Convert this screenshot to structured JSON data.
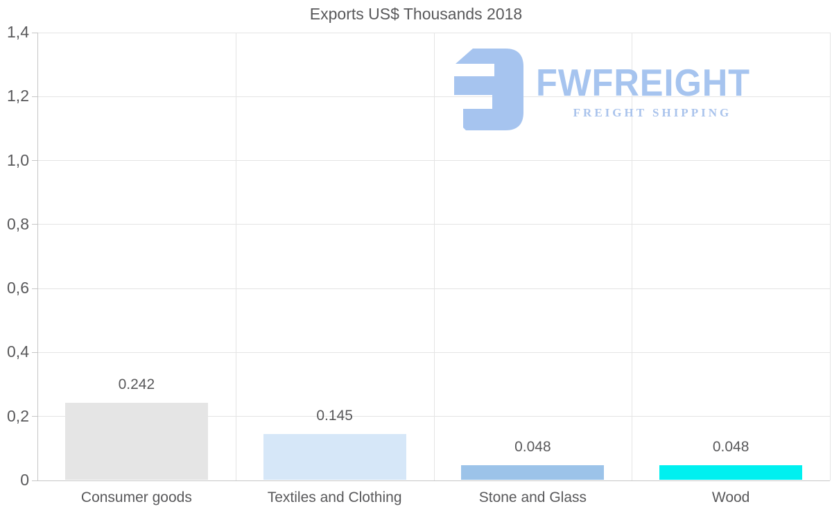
{
  "title": "Exports US$ Thousands 2018",
  "watermark": {
    "brand": "FWFREIGHT",
    "tagline": "FREIGHT SHIPPING",
    "brand_color": "#a6c4ef",
    "tagline_color": "#a9c3ec",
    "icon": "fwfreight-logo-icon"
  },
  "chart_data": {
    "type": "bar",
    "title": "Exports US$ Thousands 2018",
    "categories": [
      "Consumer goods",
      "Textiles and Clothing",
      "Stone and Glass",
      "Wood"
    ],
    "values": [
      0.242,
      0.145,
      0.048,
      0.048
    ],
    "value_labels": [
      "0.242",
      "0.145",
      "0.048",
      "0.048"
    ],
    "bar_colors": [
      "#e5e5e5",
      "#d6e7f8",
      "#9cc3e9",
      "#00f0f0"
    ],
    "xlabel": "",
    "ylabel": "",
    "ylim": [
      0,
      1.4
    ],
    "ytick_values": [
      0,
      0.2,
      0.4,
      0.6,
      0.8,
      1.0,
      1.2,
      1.4
    ],
    "ytick_labels": [
      "0",
      "0,2",
      "0,4",
      "0,6",
      "0,8",
      "1,0",
      "1,2",
      "1,4"
    ],
    "grid": true,
    "legend": "none",
    "text_color": "#58585a",
    "grid_color": "#e4e4e4",
    "axis_color": "#c6c6c6"
  }
}
